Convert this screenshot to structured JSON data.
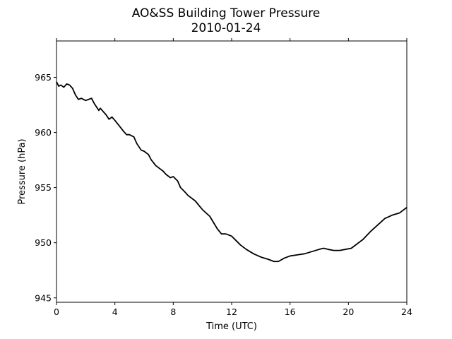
{
  "chart_data": {
    "type": "line",
    "title": "AO&SS Building Tower Pressure",
    "subtitle": "2010-01-24",
    "xlabel": "Time (UTC)",
    "ylabel": "Pressure (hPa)",
    "xlim": [
      0,
      24
    ],
    "ylim": [
      944.6,
      968.3
    ],
    "xticks": [
      0,
      4,
      8,
      12,
      16,
      20,
      24
    ],
    "yticks": [
      945,
      950,
      955,
      960,
      965
    ],
    "grid": false,
    "line_color": "#000000",
    "series": [
      {
        "x": [
          0,
          0.15,
          0.3,
          0.5,
          0.7,
          0.9,
          1.1,
          1.3,
          1.5,
          1.7,
          2.0,
          2.2,
          2.4,
          2.6,
          2.9,
          3.0,
          3.2,
          3.4,
          3.6,
          3.8,
          4.0,
          4.3,
          4.6,
          4.8,
          5.0,
          5.3,
          5.5,
          5.8,
          6.0,
          6.3,
          6.5,
          6.8,
          7.0,
          7.3,
          7.5,
          7.8,
          8.0,
          8.3,
          8.5,
          8.8,
          9.0,
          9.5,
          10.0,
          10.5,
          11.0,
          11.3,
          11.6,
          12.0,
          12.3,
          12.6,
          13.0,
          13.5,
          14.0,
          14.5,
          14.9,
          15.2,
          15.6,
          16.0,
          16.5,
          17.0,
          17.5,
          18.0,
          18.3,
          18.6,
          19.0,
          19.4,
          19.8,
          20.2,
          20.6,
          21.0,
          21.5,
          22.0,
          22.5,
          23.0,
          23.5,
          24.0
        ],
        "y": [
          964.6,
          964.2,
          964.3,
          964.1,
          964.4,
          964.3,
          964.0,
          963.4,
          963.0,
          963.1,
          962.9,
          963.0,
          963.1,
          962.6,
          962.0,
          962.2,
          961.9,
          961.6,
          961.2,
          961.4,
          961.1,
          960.6,
          960.1,
          959.8,
          959.8,
          959.6,
          959.0,
          958.4,
          958.3,
          958.0,
          957.5,
          957.0,
          956.8,
          956.5,
          956.2,
          955.9,
          956.0,
          955.6,
          955.0,
          954.6,
          954.3,
          953.8,
          953.0,
          952.4,
          951.3,
          950.8,
          950.8,
          950.6,
          950.2,
          949.8,
          949.4,
          949.0,
          948.7,
          948.5,
          948.3,
          948.3,
          948.6,
          948.8,
          948.9,
          949.0,
          949.2,
          949.4,
          949.5,
          949.4,
          949.3,
          949.3,
          949.4,
          949.5,
          949.9,
          950.3,
          951.0,
          951.6,
          952.2,
          952.5,
          952.7,
          953.2
        ]
      }
    ]
  }
}
